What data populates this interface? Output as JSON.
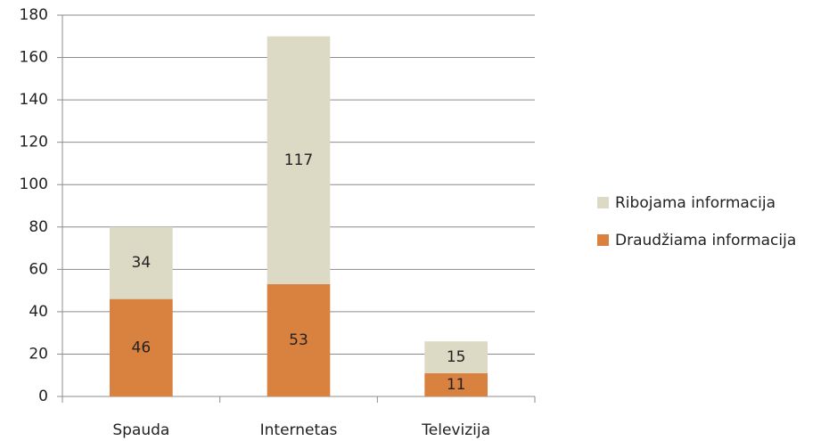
{
  "chart_data": {
    "type": "stacked_bar",
    "categories": [
      "Spauda",
      "Internetas",
      "Televizija"
    ],
    "series": [
      {
        "name": "Draudžiama informacija",
        "color": "#d98240",
        "values": [
          46,
          53,
          11
        ]
      },
      {
        "name": "Ribojama informacija",
        "color": "#dcd9c5",
        "values": [
          34,
          117,
          15
        ]
      }
    ],
    "ylim": [
      0,
      180
    ],
    "yticks": [
      0,
      20,
      40,
      60,
      80,
      100,
      120,
      140,
      160,
      180
    ],
    "grid": true,
    "legend": "right"
  }
}
